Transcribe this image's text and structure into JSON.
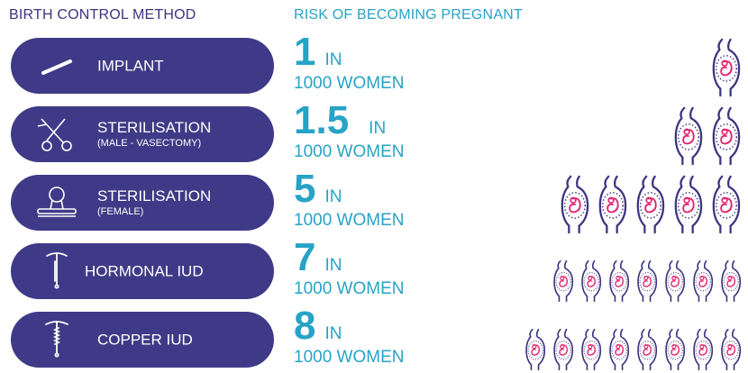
{
  "header": {
    "method": "BIRTH CONTROL METHOD",
    "risk": "RISK OF BECOMING PREGNANT"
  },
  "colors": {
    "pill": "#3f3a87",
    "accent": "#27a3c6",
    "outline": "#3b3480",
    "fetus": "#e3246d"
  },
  "rows": [
    {
      "label": "IMPLANT",
      "sub": "",
      "icon": "implant-rod-icon",
      "num": "1",
      "in": "IN",
      "women": "1000 WOMEN",
      "count": 1
    },
    {
      "label": "STERILISATION",
      "sub": "(MALE - VASECTOMY)",
      "icon": "scissors-icon",
      "num": "1.5",
      "in": "IN",
      "women": "1000 WOMEN",
      "count": 2
    },
    {
      "label": "STERILISATION",
      "sub": "(FEMALE)",
      "icon": "fallopian-clip-icon",
      "num": "5",
      "in": "IN",
      "women": "1000 WOMEN",
      "count": 5
    },
    {
      "label": "HORMONAL IUD",
      "sub": "",
      "icon": "iud-icon",
      "num": "7",
      "in": "IN",
      "women": "1000 WOMEN",
      "count": 7
    },
    {
      "label": "COPPER IUD",
      "sub": "",
      "icon": "copper-iud-icon",
      "num": "8",
      "in": "IN",
      "women": "1000 WOMEN",
      "count": 8
    }
  ]
}
